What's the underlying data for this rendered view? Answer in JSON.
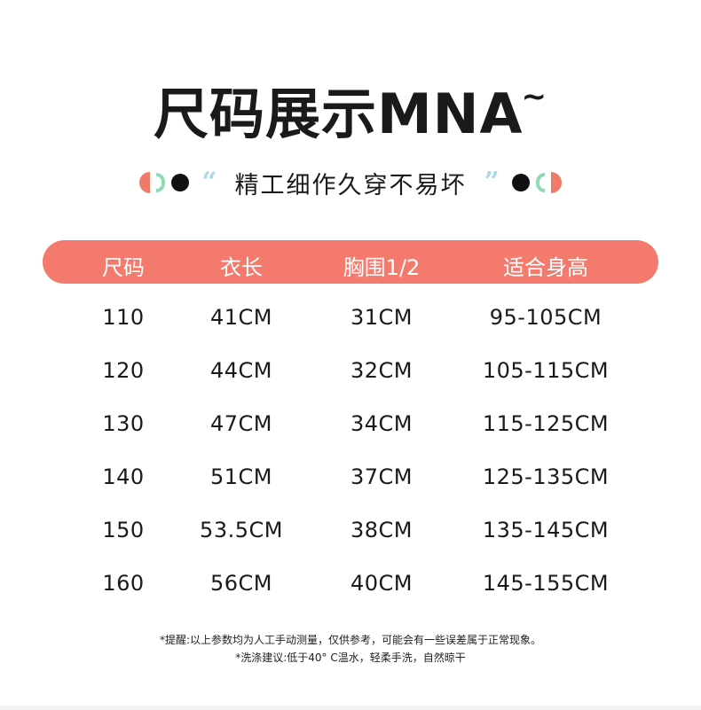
{
  "title": {
    "main": "尺码展示MNA",
    "tilde": "~"
  },
  "subtitle": {
    "open_quote": "“",
    "text": "精工细作久穿不易坏",
    "close_quote": "”"
  },
  "colors": {
    "accent": "#f47a6e",
    "mint": "#8fdcb4",
    "quote_blue": "#a9d9e8"
  },
  "table": {
    "headers": [
      "尺码",
      "衣长",
      "胸围1/2",
      "适合身高"
    ],
    "rows": [
      [
        "110",
        "41CM",
        "31CM",
        "95-105CM"
      ],
      [
        "120",
        "44CM",
        "32CM",
        "105-115CM"
      ],
      [
        "130",
        "47CM",
        "34CM",
        "115-125CM"
      ],
      [
        "140",
        "51CM",
        "37CM",
        "125-135CM"
      ],
      [
        "150",
        "53.5CM",
        "38CM",
        "135-145CM"
      ],
      [
        "160",
        "56CM",
        "40CM",
        "145-155CM"
      ]
    ]
  },
  "notes": [
    "*提醒:以上参数均为人工手动测量，仅供参考，可能会有一些误差属于正常现象。",
    "*洗涤建议:低于40° C温水，轻柔手洗，自然晾干"
  ]
}
